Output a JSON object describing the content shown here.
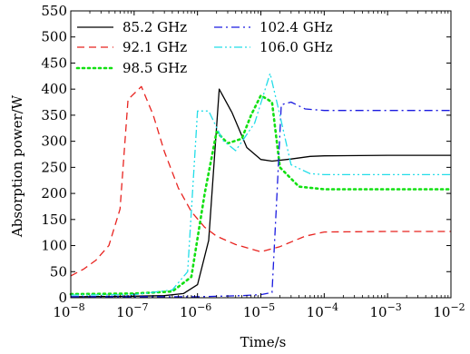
{
  "chart_data": {
    "type": "line",
    "xlabel": "Time/s",
    "ylabel": "Absorption power/W",
    "xscale": "log",
    "xlim": [
      1e-08,
      0.01
    ],
    "ylim": [
      0,
      550
    ],
    "x_ticks": [
      {
        "base": "10",
        "exp": "−8"
      },
      {
        "base": "10",
        "exp": "−7"
      },
      {
        "base": "10",
        "exp": "−6"
      },
      {
        "base": "10",
        "exp": "−5"
      },
      {
        "base": "10",
        "exp": "−4"
      },
      {
        "base": "10",
        "exp": "−3"
      },
      {
        "base": "10",
        "exp": "−2"
      }
    ],
    "y_ticks": [
      "0",
      "50",
      "100",
      "150",
      "200",
      "250",
      "300",
      "350",
      "400",
      "450",
      "500",
      "550"
    ],
    "grid": false,
    "legend_position": "top-left",
    "series": [
      {
        "name": "85.2 GHz",
        "color": "#000000",
        "dash": "solid",
        "points": [
          [
            1e-08,
            2
          ],
          [
            1e-07,
            3
          ],
          [
            3e-07,
            4
          ],
          [
            6e-07,
            8
          ],
          [
            1e-06,
            25
          ],
          [
            1.5e-06,
            110
          ],
          [
            2.2e-06,
            400
          ],
          [
            3.5e-06,
            355
          ],
          [
            6e-06,
            288
          ],
          [
            1e-05,
            265
          ],
          [
            1.5e-05,
            262
          ],
          [
            3e-05,
            266
          ],
          [
            6e-05,
            271
          ],
          [
            0.0001,
            272
          ],
          [
            0.001,
            273
          ],
          [
            0.01,
            273
          ]
        ]
      },
      {
        "name": "92.1 GHz",
        "color": "#e8231f",
        "dash": "dashed",
        "points": [
          [
            1e-08,
            42
          ],
          [
            1.6e-08,
            55
          ],
          [
            2.5e-08,
            72
          ],
          [
            4e-08,
            100
          ],
          [
            6e-08,
            170
          ],
          [
            8e-08,
            380
          ],
          [
            1.3e-07,
            405
          ],
          [
            2e-07,
            350
          ],
          [
            3e-07,
            280
          ],
          [
            5e-07,
            210
          ],
          [
            8e-07,
            165
          ],
          [
            1.3e-06,
            135
          ],
          [
            2e-06,
            118
          ],
          [
            4e-06,
            102
          ],
          [
            1e-05,
            88
          ],
          [
            2e-05,
            98
          ],
          [
            5e-05,
            118
          ],
          [
            0.0001,
            126
          ],
          [
            0.001,
            127
          ],
          [
            0.01,
            127
          ]
        ]
      },
      {
        "name": "98.5 GHz",
        "color": "#12e012",
        "dash": "dotted",
        "points": [
          [
            1e-08,
            7
          ],
          [
            1e-07,
            8
          ],
          [
            4e-07,
            12
          ],
          [
            8e-07,
            40
          ],
          [
            1.3e-06,
            200
          ],
          [
            2e-06,
            318
          ],
          [
            3e-06,
            296
          ],
          [
            5e-06,
            305
          ],
          [
            7e-06,
            350
          ],
          [
            1e-05,
            388
          ],
          [
            1.5e-05,
            375
          ],
          [
            2e-05,
            250
          ],
          [
            4e-05,
            213
          ],
          [
            0.0001,
            208
          ],
          [
            0.001,
            208
          ],
          [
            0.01,
            208
          ]
        ]
      },
      {
        "name": "102.4 GHz",
        "color": "#1a1ae0",
        "dash": "dashdot",
        "points": [
          [
            1e-08,
            2
          ],
          [
            1e-06,
            2
          ],
          [
            5e-06,
            4
          ],
          [
            1e-05,
            6
          ],
          [
            1.5e-05,
            10
          ],
          [
            1.8e-05,
            200
          ],
          [
            2.1e-05,
            370
          ],
          [
            3e-05,
            375
          ],
          [
            5e-05,
            362
          ],
          [
            0.0001,
            359
          ],
          [
            0.001,
            359
          ],
          [
            0.01,
            359
          ]
        ]
      },
      {
        "name": "106.0 GHz",
        "color": "#22dde8",
        "dash": "dashdotdot",
        "points": [
          [
            1e-08,
            5
          ],
          [
            1e-07,
            6
          ],
          [
            4e-07,
            15
          ],
          [
            7e-07,
            50
          ],
          [
            1e-06,
            358
          ],
          [
            1.5e-06,
            358
          ],
          [
            2.5e-06,
            302
          ],
          [
            4e-06,
            282
          ],
          [
            8e-06,
            335
          ],
          [
            1.4e-05,
            430
          ],
          [
            2e-05,
            350
          ],
          [
            3e-05,
            255
          ],
          [
            6e-05,
            238
          ],
          [
            0.0001,
            236
          ],
          [
            0.001,
            236
          ],
          [
            0.01,
            236
          ]
        ]
      }
    ]
  }
}
